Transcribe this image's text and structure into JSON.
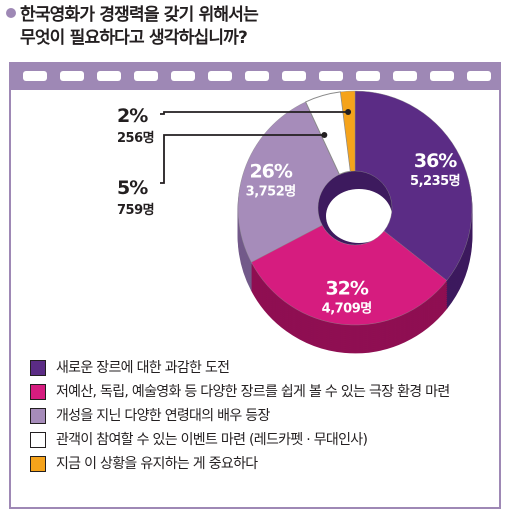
{
  "title": {
    "line1": "한국영화가 경쟁력을 갖기 위해서는",
    "line2": "무엇이 필요하다고 생각하십니까?"
  },
  "colors": {
    "frame": "#9e88b5",
    "slices": [
      "#5b2c85",
      "#d61c7f",
      "#a68cba",
      "#ffffff",
      "#f5a31b"
    ],
    "slices_dark": [
      "#3d1a5e",
      "#8f0f52",
      "#735a8a",
      "#c9c9c9",
      "#b5740a"
    ]
  },
  "chart_data": {
    "type": "pie",
    "variant": "donut",
    "unit": "명",
    "slices": [
      {
        "label": "새로운 장르에 대한 과감한 도전",
        "percent": 36,
        "count": "5,235명",
        "pct_label": "36%"
      },
      {
        "label": "저예산, 독립, 예술영화 등 다양한 장르를 쉽게 볼 수 있는 극장 환경 마련",
        "percent": 32,
        "count": "4,709명",
        "pct_label": "32%"
      },
      {
        "label": "개성을 지닌 다양한 연령대의 배우 등장",
        "percent": 26,
        "count": "3,752명",
        "pct_label": "26%"
      },
      {
        "label": "관객이 참여할 수 있는 이벤트 마련 (레드카펫 · 무대인사)",
        "percent": 5,
        "count": "759명",
        "pct_label": "5%"
      },
      {
        "label": "지금 이 상황을 유지하는 게 중요하다",
        "percent": 2,
        "count": "256명",
        "pct_label": "2%"
      }
    ],
    "legend_position": "bottom"
  }
}
